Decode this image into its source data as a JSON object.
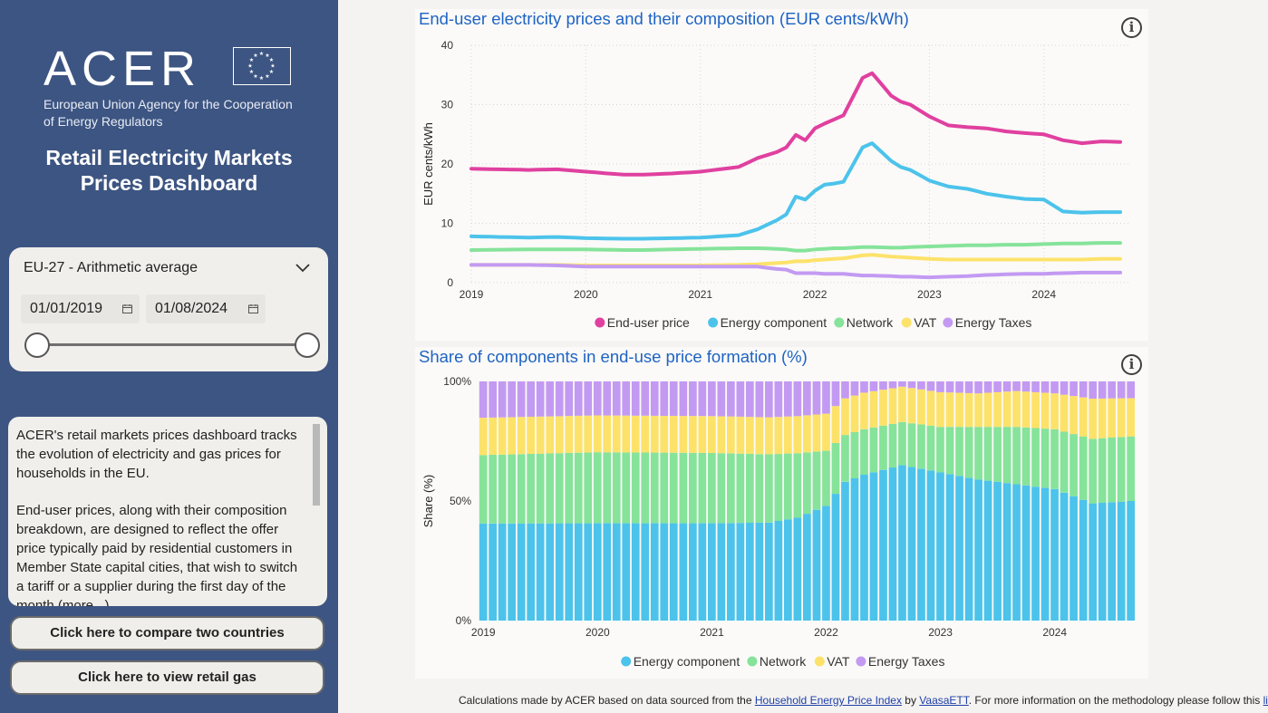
{
  "sidebar": {
    "logo_text": "ACER",
    "logo_subtitle": "European Union Agency for the Cooperation of Energy Regulators",
    "title_line1": "Retail Electricity Markets",
    "title_line2": "Prices Dashboard",
    "region_select": "EU-27 - Arithmetic average",
    "date_start": "01/01/2019",
    "date_end": "01/08/2024",
    "description_p1": "ACER's retail markets prices dashboard tracks the evolution of electricity and gas prices for households in the EU.",
    "description_p2": "End-user prices, along with their composition breakdown, are designed to reflect the offer price typically paid by residential customers in Member State capital cities, that wish to switch a tariff or a supplier during the first day of the month (more...)",
    "compare_button": "Click here to compare two countries",
    "gas_button": "Click here to view retail gas"
  },
  "colors": {
    "sidebar_bg": "#3d5582",
    "end_user_price": "#e040a0",
    "energy_component": "#4cc3eb",
    "network": "#86e39a",
    "vat": "#fde26a",
    "energy_taxes": "#c39af2",
    "title_blue": "#1e63c4"
  },
  "footer": {
    "text_before": "Calculations made by ACER based on data sourced from the ",
    "link1": "Household Energy Price Index",
    "text_mid": " by ",
    "link2": "VaasaETT",
    "text_after": ". For more information on the methodology please follow this ",
    "link3": "link",
    "text_end": "."
  },
  "chart_data": [
    {
      "type": "line",
      "title": "End-user electricity prices and their composition (EUR cents/kWh)",
      "ylabel": "EUR cents/kWh",
      "xlabel": "",
      "ylim": [
        0,
        40
      ],
      "yticks": [
        "0",
        "10",
        "20",
        "30",
        "40"
      ],
      "xticks": [
        "2019",
        "2020",
        "2021",
        "2022",
        "2023",
        "2024"
      ],
      "x_start": "2019-01",
      "x_end": "2024-08",
      "x_anchor_months": [
        0,
        6,
        9,
        12,
        16,
        18,
        21,
        24,
        28,
        30,
        32,
        33,
        34,
        35,
        36,
        37,
        38,
        39,
        41,
        42,
        44,
        45,
        46,
        48,
        50,
        52,
        54,
        56,
        58,
        60,
        62,
        64,
        66,
        68
      ],
      "grid": true,
      "legend_position": "bottom",
      "series": [
        {
          "name": "End-user price",
          "values": [
            19.2,
            19.0,
            19.1,
            18.7,
            18.2,
            18.2,
            18.4,
            18.7,
            19.5,
            21.0,
            22.0,
            22.8,
            24.9,
            24.0,
            26.0,
            26.8,
            27.5,
            28.2,
            34.5,
            35.3,
            31.5,
            30.5,
            30.0,
            28.0,
            26.5,
            26.2,
            26.0,
            25.5,
            25.2,
            25.0,
            24.0,
            23.5,
            23.8,
            23.7
          ]
        },
        {
          "name": "Energy component",
          "values": [
            7.8,
            7.6,
            7.7,
            7.5,
            7.4,
            7.4,
            7.5,
            7.6,
            8.0,
            9.0,
            10.5,
            11.5,
            14.5,
            14.0,
            15.5,
            16.5,
            16.7,
            17.0,
            22.8,
            23.5,
            20.5,
            19.5,
            19.0,
            17.2,
            16.2,
            15.8,
            15.0,
            14.5,
            14.1,
            14.0,
            12.0,
            11.8,
            11.9,
            11.9
          ]
        },
        {
          "name": "Network",
          "values": [
            5.5,
            5.6,
            5.6,
            5.6,
            5.5,
            5.5,
            5.6,
            5.7,
            5.8,
            5.8,
            5.7,
            5.6,
            5.4,
            5.4,
            5.6,
            5.7,
            5.8,
            5.8,
            6.0,
            6.0,
            5.9,
            5.9,
            6.0,
            6.1,
            6.2,
            6.3,
            6.3,
            6.4,
            6.4,
            6.5,
            6.6,
            6.6,
            6.7,
            6.7
          ]
        },
        {
          "name": "VAT",
          "values": [
            3.0,
            3.0,
            3.0,
            2.9,
            2.9,
            2.9,
            2.9,
            2.9,
            3.0,
            3.1,
            3.3,
            3.4,
            3.6,
            3.6,
            3.8,
            3.9,
            4.0,
            4.1,
            4.6,
            4.7,
            4.4,
            4.3,
            4.2,
            4.0,
            3.9,
            3.9,
            3.9,
            3.9,
            3.9,
            3.9,
            3.9,
            3.9,
            4.0,
            4.0
          ]
        },
        {
          "name": "Energy Taxes",
          "values": [
            3.0,
            3.0,
            2.9,
            2.7,
            2.7,
            2.7,
            2.7,
            2.7,
            2.7,
            2.7,
            2.3,
            2.2,
            1.6,
            1.6,
            1.6,
            1.5,
            1.5,
            1.5,
            1.2,
            1.2,
            1.1,
            1.0,
            1.0,
            0.9,
            1.0,
            1.1,
            1.3,
            1.4,
            1.5,
            1.5,
            1.6,
            1.7,
            1.7,
            1.7
          ]
        }
      ]
    },
    {
      "type": "bar",
      "stacked": true,
      "title": "Share of components in end-use price formation (%)",
      "ylabel": "Share (%)",
      "xlabel": "",
      "ylim": [
        0,
        100
      ],
      "yticks": [
        "0%",
        "50%",
        "100%"
      ],
      "xticks": [
        "2019",
        "2020",
        "2021",
        "2022",
        "2023",
        "2024"
      ],
      "x_start": "2019-01",
      "x_end": "2024-08",
      "x_anchor_months": [
        0,
        12,
        24,
        30,
        33,
        36,
        38,
        40,
        44,
        48,
        52,
        56,
        60,
        64,
        68
      ],
      "legend_position": "bottom",
      "series": [
        {
          "name": "Energy component",
          "values": [
            40.6,
            40.7,
            40.7,
            41.0,
            43.0,
            48.0,
            58.0,
            61.0,
            65.0,
            62.0,
            59.0,
            57.0,
            55.0,
            49.0,
            50.0
          ]
        },
        {
          "name": "Network",
          "values": [
            28.6,
            29.7,
            29.4,
            28.5,
            27.0,
            23.0,
            19.6,
            19.0,
            18.0,
            19.0,
            22.0,
            24.0,
            25.0,
            27.0,
            27.0
          ]
        },
        {
          "name": "VAT",
          "values": [
            15.6,
            15.4,
            15.4,
            15.5,
            15.5,
            15.5,
            15.3,
            15.3,
            14.8,
            14.5,
            14.0,
            15.0,
            15.0,
            16.8,
            16.0
          ]
        },
        {
          "name": "Energy Taxes",
          "values": [
            15.2,
            14.2,
            14.5,
            15.0,
            14.5,
            13.5,
            7.1,
            4.7,
            2.2,
            4.5,
            5.0,
            4.0,
            5.0,
            7.2,
            7.0
          ]
        }
      ]
    }
  ]
}
